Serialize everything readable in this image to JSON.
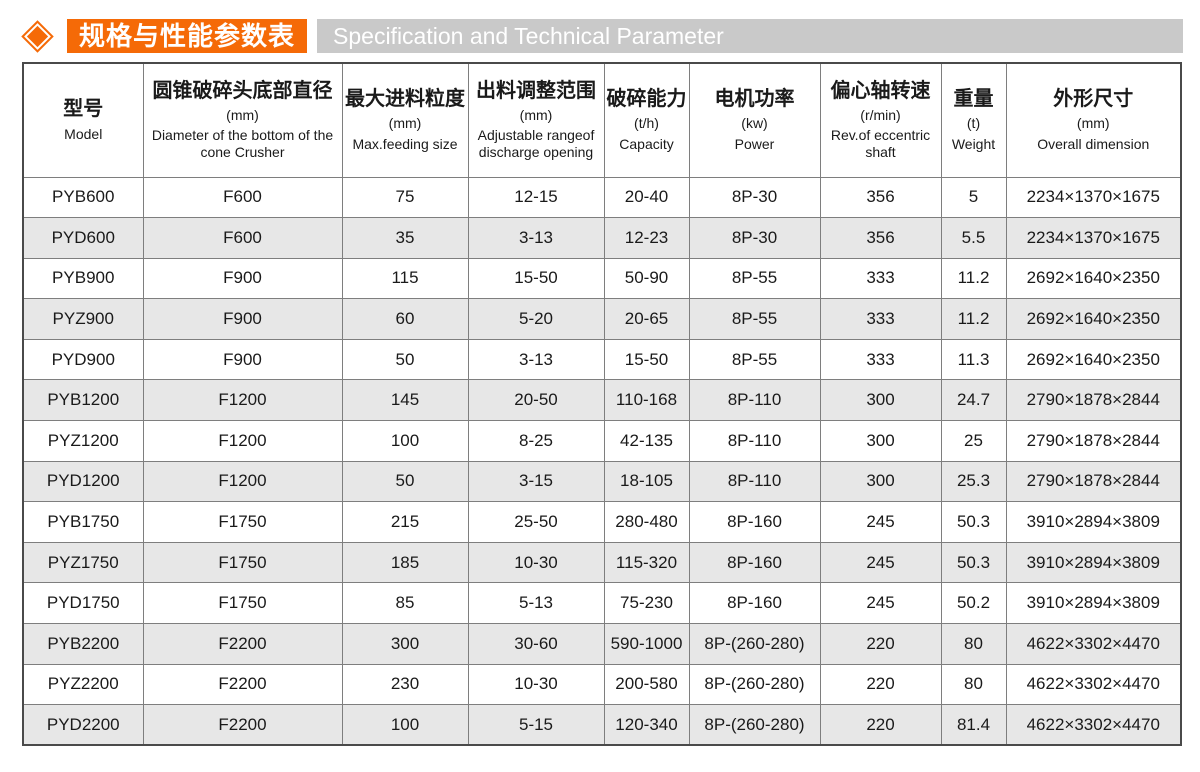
{
  "header": {
    "title_zh": "规格与性能参数表",
    "title_en": "Specification and Technical Parameter",
    "marker_icon": "diamond-icon"
  },
  "colors": {
    "accent": "#f56a07",
    "bar": "#c9c9c9",
    "row_alt": "#e7e7e7",
    "grid": "#7e7e7e",
    "text": "#1a1a1a"
  },
  "table": {
    "columns": [
      {
        "id": "model",
        "zh": "型号",
        "unit": "",
        "en": "Model"
      },
      {
        "id": "diameter",
        "zh": "圆锥破碎头底部直径",
        "unit": "(mm)",
        "en": "Diameter of the bottom of the cone Crusher"
      },
      {
        "id": "max-feeding",
        "zh": "最大进料粒度",
        "unit": "(mm)",
        "en": "Max.feeding size"
      },
      {
        "id": "discharge",
        "zh": "出料调整范围",
        "unit": "(mm)",
        "en": "Adjustable rangeof discharge opening"
      },
      {
        "id": "capacity",
        "zh": "破碎能力",
        "unit": "(t/h)",
        "en": "Capacity"
      },
      {
        "id": "power",
        "zh": "电机功率",
        "unit": "(kw)",
        "en": "Power"
      },
      {
        "id": "rev",
        "zh": "偏心轴转速",
        "unit": "(r/min)",
        "en": "Rev.of eccentric shaft"
      },
      {
        "id": "weight",
        "zh": "重量",
        "unit": "(t)",
        "en": "Weight"
      },
      {
        "id": "dimension",
        "zh": "外形尺寸",
        "unit": "(mm)",
        "en": "Overall dimension"
      }
    ],
    "rows": [
      [
        "PYB600",
        "F600",
        "75",
        "12-15",
        "20-40",
        "8P-30",
        "356",
        "5",
        "2234×1370×1675"
      ],
      [
        "PYD600",
        "F600",
        "35",
        "3-13",
        "12-23",
        "8P-30",
        "356",
        "5.5",
        "2234×1370×1675"
      ],
      [
        "PYB900",
        "F900",
        "115",
        "15-50",
        "50-90",
        "8P-55",
        "333",
        "11.2",
        "2692×1640×2350"
      ],
      [
        "PYZ900",
        "F900",
        "60",
        "5-20",
        "20-65",
        "8P-55",
        "333",
        "11.2",
        "2692×1640×2350"
      ],
      [
        "PYD900",
        "F900",
        "50",
        "3-13",
        "15-50",
        "8P-55",
        "333",
        "11.3",
        "2692×1640×2350"
      ],
      [
        "PYB1200",
        "F1200",
        "145",
        "20-50",
        "110-168",
        "8P-110",
        "300",
        "24.7",
        "2790×1878×2844"
      ],
      [
        "PYZ1200",
        "F1200",
        "100",
        "8-25",
        "42-135",
        "8P-110",
        "300",
        "25",
        "2790×1878×2844"
      ],
      [
        "PYD1200",
        "F1200",
        "50",
        "3-15",
        "18-105",
        "8P-110",
        "300",
        "25.3",
        "2790×1878×2844"
      ],
      [
        "PYB1750",
        "F1750",
        "215",
        "25-50",
        "280-480",
        "8P-160",
        "245",
        "50.3",
        "3910×2894×3809"
      ],
      [
        "PYZ1750",
        "F1750",
        "185",
        "10-30",
        "115-320",
        "8P-160",
        "245",
        "50.3",
        "3910×2894×3809"
      ],
      [
        "PYD1750",
        "F1750",
        "85",
        "5-13",
        "75-230",
        "8P-160",
        "245",
        "50.2",
        "3910×2894×3809"
      ],
      [
        "PYB2200",
        "F2200",
        "300",
        "30-60",
        "590-1000",
        "8P-(260-280)",
        "220",
        "80",
        "4622×3302×4470"
      ],
      [
        "PYZ2200",
        "F2200",
        "230",
        "10-30",
        "200-580",
        "8P-(260-280)",
        "220",
        "80",
        "4622×3302×4470"
      ],
      [
        "PYD2200",
        "F2200",
        "100",
        "5-15",
        "120-340",
        "8P-(260-280)",
        "220",
        "81.4",
        "4622×3302×4470"
      ]
    ]
  }
}
